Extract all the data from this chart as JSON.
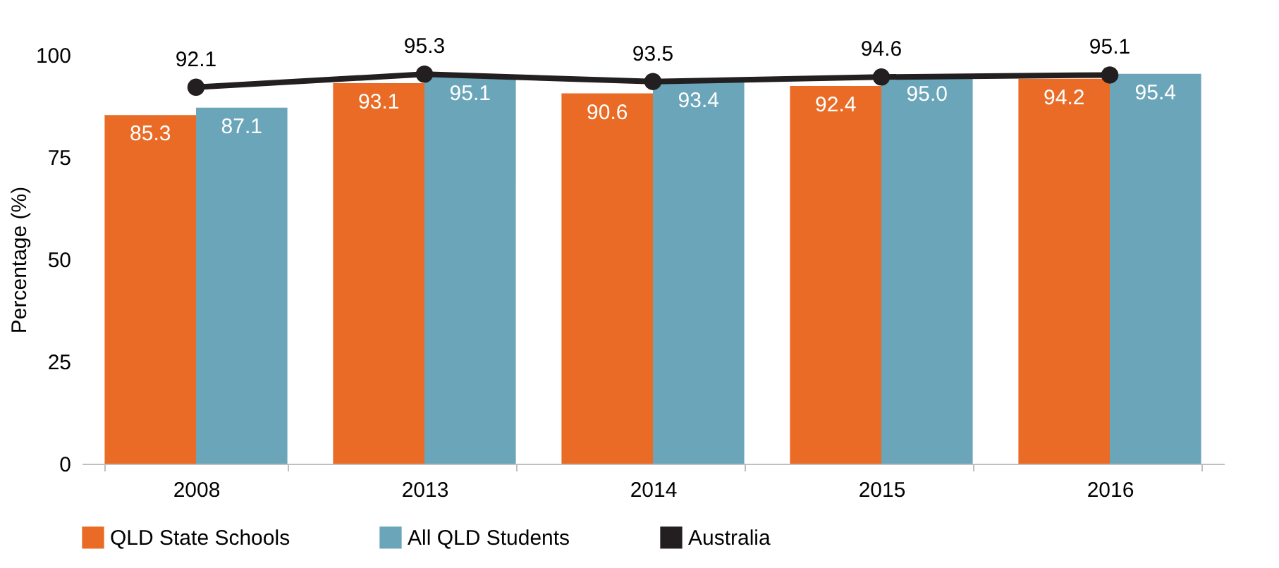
{
  "chart_data": {
    "type": "bar",
    "ylabel": "Percentage (%)",
    "categories": [
      "2008",
      "2013",
      "2014",
      "2015",
      "2016"
    ],
    "series": [
      {
        "name": "QLD State Schools",
        "color": "#e96b25",
        "values": [
          85.3,
          93.1,
          90.6,
          92.4,
          94.2
        ]
      },
      {
        "name": "All QLD Students",
        "color": "#6aa5b9",
        "values": [
          87.1,
          95.1,
          93.4,
          95.0,
          95.4
        ],
        "value_labels": [
          "87.1",
          "95.1",
          "93.4",
          "95.0",
          "95.4"
        ]
      },
      {
        "name": "Australia",
        "type": "line",
        "color": "#231f20",
        "values": [
          92.1,
          95.3,
          93.5,
          94.6,
          95.1
        ]
      }
    ],
    "ylim": [
      0,
      100
    ],
    "yticks": [
      0,
      25,
      50,
      75,
      100
    ],
    "grid": false,
    "legend": "bottom",
    "marker": "circle",
    "line_style": "solid",
    "data_labels": true
  }
}
